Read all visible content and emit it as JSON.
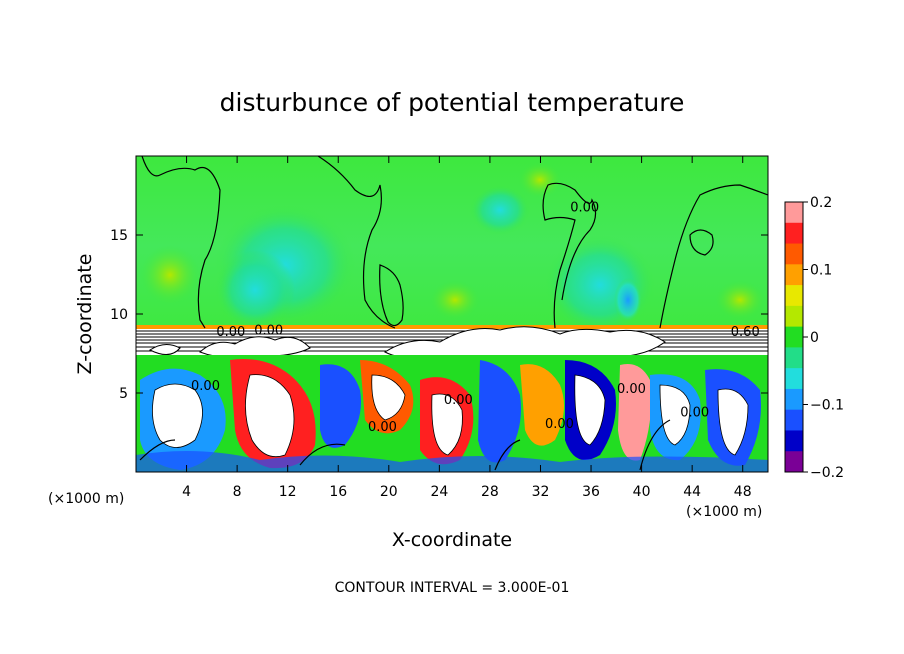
{
  "chart_data": {
    "type": "heatmap",
    "title": "disturbunce of potential temperature",
    "xlabel": "X-coordinate",
    "ylabel": "Z-coordinate",
    "x_unit": "(×1000 m)",
    "x_unit_right": "(×1000 m)",
    "xlim": [
      0,
      50
    ],
    "ylim": [
      0,
      20
    ],
    "x_ticks": [
      4,
      8,
      12,
      16,
      20,
      24,
      28,
      32,
      36,
      40,
      44,
      48
    ],
    "y_ticks": [
      5,
      10,
      15
    ],
    "colorbar": {
      "range": [
        -0.2,
        0.2
      ],
      "ticks": [
        0.2,
        0.1,
        0,
        -0.1,
        -0.2
      ],
      "tick_labels": [
        "0.2",
        "0.1",
        "0",
        "−0.1",
        "−0.2"
      ],
      "colors": [
        "#ff9a9a",
        "#ff2020",
        "#ff5a00",
        "#ffa000",
        "#e8e800",
        "#b4e800",
        "#22dd22",
        "#22dd88",
        "#22dddd",
        "#1a9aff",
        "#1a50ff",
        "#0000c8",
        "#7a0096"
      ]
    },
    "contour_labels": [
      {
        "text": "0.00",
        "x": 10.5,
        "z": 8.7
      },
      {
        "text": "0.00",
        "x": 7.5,
        "z": 8.6
      },
      {
        "text": "0.00",
        "x": 5.5,
        "z": 5.2
      },
      {
        "text": "0.00",
        "x": 19.5,
        "z": 2.6
      },
      {
        "text": "0.00",
        "x": 25.5,
        "z": 4.3
      },
      {
        "text": "0.00",
        "x": 33.5,
        "z": 2.8
      },
      {
        "text": "0.00",
        "x": 39.2,
        "z": 5.0
      },
      {
        "text": "0.00",
        "x": 44.2,
        "z": 3.5
      },
      {
        "text": "0.00",
        "x": 35.5,
        "z": 16.5
      },
      {
        "text": "0.60",
        "x": 48.2,
        "z": 8.6
      }
    ],
    "footer": "CONTOUR INTERVAL = 3.000E-01"
  }
}
